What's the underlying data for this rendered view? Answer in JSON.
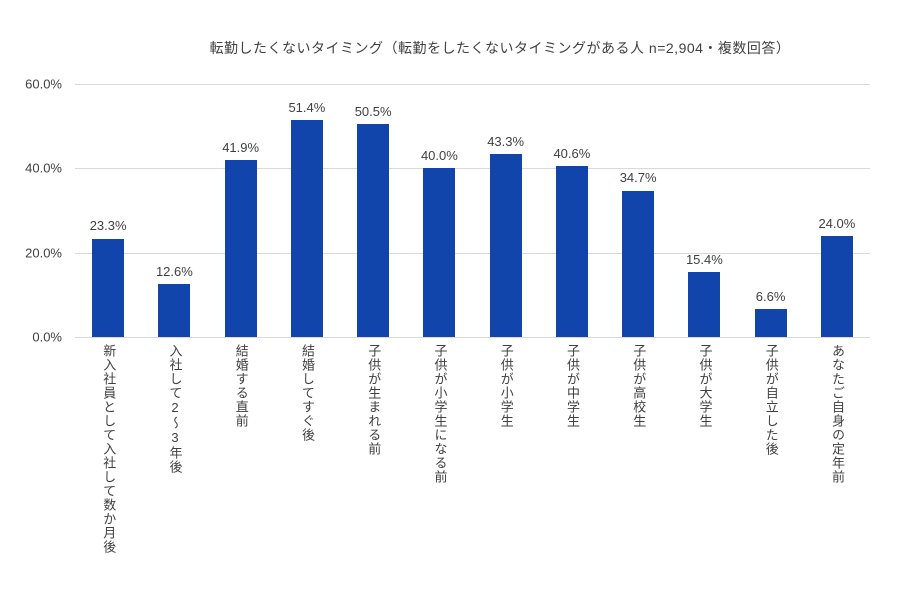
{
  "chart_data": {
    "type": "bar",
    "title": "転勤したくないタイミング（転勤をしたくないタイミングがある人 n=2,904・複数回答）",
    "categories": [
      "新入社員として入社して数か月後",
      "入社して2～3年後",
      "結婚する直前",
      "結婚してすぐ後",
      "子供が生まれる前",
      "子供が小学生になる前",
      "子供が小学生",
      "子供が中学生",
      "子供が高校生",
      "子供が大学生",
      "子供が自立した後",
      "あなたご自身の定年前"
    ],
    "values": [
      23.3,
      12.6,
      41.9,
      51.4,
      50.5,
      40.0,
      43.3,
      40.6,
      34.7,
      15.4,
      6.6,
      24.0
    ],
    "value_labels": [
      "23.3%",
      "12.6%",
      "41.9%",
      "51.4%",
      "50.5%",
      "40.0%",
      "43.3%",
      "40.6%",
      "34.7%",
      "15.4%",
      "6.6%",
      "24.0%"
    ],
    "xlabel": "",
    "ylabel": "",
    "ylim": [
      0,
      60
    ],
    "y_ticks": [
      "60.0%",
      "40.0%",
      "20.0%",
      "0.0%"
    ],
    "grid": true,
    "legend_position": "none",
    "bar_color": "#1245ab",
    "gridline_color": "#d9d9d9",
    "text_color": "#404040"
  }
}
